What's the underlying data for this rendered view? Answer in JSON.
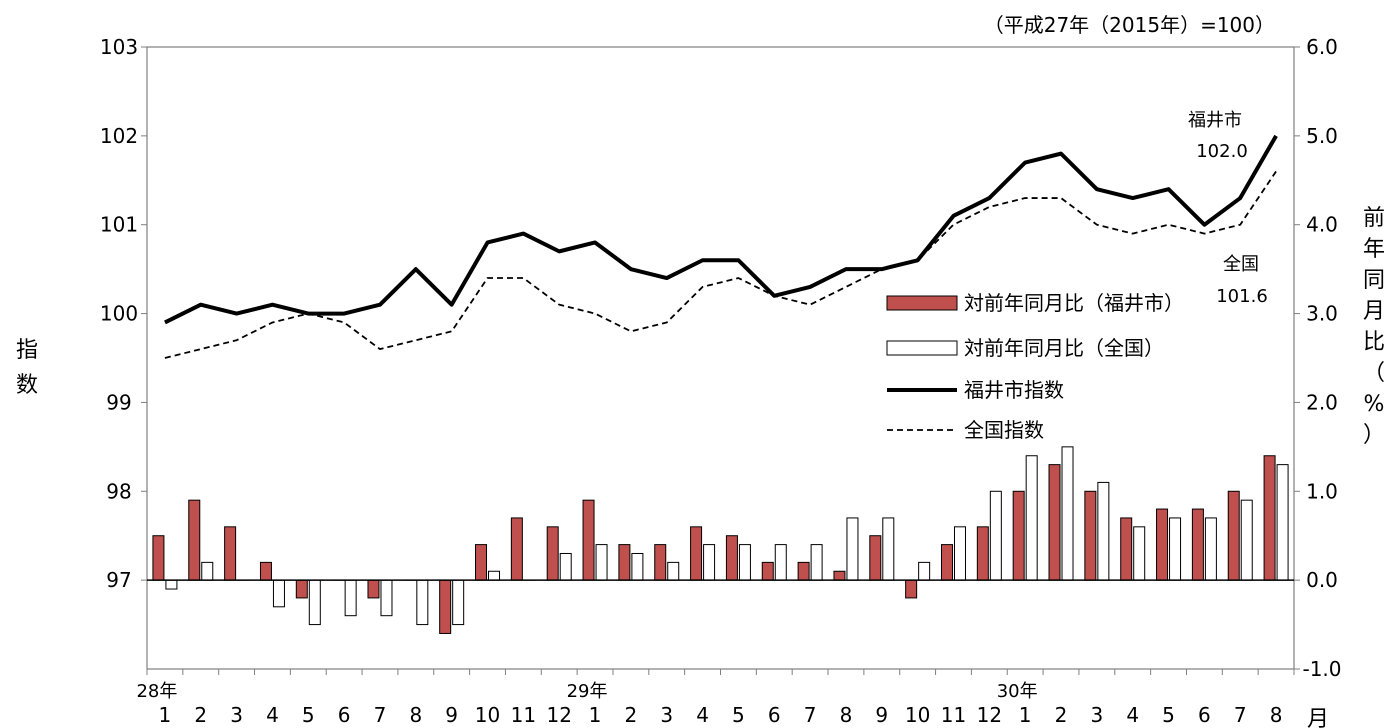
{
  "chart_data": {
    "type": "bar+line",
    "unit_note": "（平成27年（2015年）=100）",
    "y_left": {
      "label": "指数",
      "ticks": [
        "103",
        "102",
        "101",
        "100",
        "99",
        "98",
        "97"
      ],
      "ylim": [
        96,
        103
      ]
    },
    "y_right": {
      "label": [
        "前",
        "年",
        "同",
        "月",
        "比",
        "（",
        "%",
        "）"
      ],
      "ticks": [
        "6.0",
        "5.0",
        "4.0",
        "3.0",
        "2.0",
        "1.0",
        "0.0",
        "-1.0"
      ],
      "ylim": [
        -1,
        6
      ]
    },
    "x_month_labels": [
      "1",
      "2",
      "3",
      "4",
      "5",
      "6",
      "7",
      "8",
      "9",
      "10",
      "11",
      "12",
      "1",
      "2",
      "3",
      "4",
      "5",
      "6",
      "7",
      "8",
      "9",
      "10",
      "11",
      "12",
      "1",
      "2",
      "3",
      "4",
      "5",
      "6",
      "7",
      "8"
    ],
    "x_year_labels": [
      {
        "index": 0,
        "text": "28年"
      },
      {
        "index": 12,
        "text": "29年"
      },
      {
        "index": 24,
        "text": "30年"
      }
    ],
    "x_unit": "月",
    "series": [
      {
        "name": "対前年同月比（福井市）",
        "kind": "bar",
        "axis": "right",
        "color": "#c0504d",
        "values": [
          0.5,
          0.9,
          0.6,
          0.2,
          -0.2,
          0,
          -0.2,
          0,
          -0.6,
          0.4,
          0.7,
          0.6,
          0.9,
          0.4,
          0.4,
          0.6,
          0.5,
          0.2,
          0.2,
          0.1,
          0.5,
          -0.2,
          0.4,
          0.6,
          1.0,
          1.3,
          1.0,
          0.7,
          0.8,
          0.8,
          1.0,
          1.4
        ]
      },
      {
        "name": "対前年同月比（全国）",
        "kind": "bar",
        "axis": "right",
        "color": "#ffffff",
        "values": [
          -0.1,
          0.2,
          0,
          -0.3,
          -0.5,
          -0.4,
          -0.4,
          -0.5,
          -0.5,
          0.1,
          0,
          0.3,
          0.4,
          0.3,
          0.2,
          0.4,
          0.4,
          0.4,
          0.4,
          0.7,
          0.7,
          0.2,
          0.6,
          1.0,
          1.4,
          1.5,
          1.1,
          0.6,
          0.7,
          0.7,
          0.9,
          1.3
        ]
      },
      {
        "name": "福井市指数",
        "kind": "line",
        "axis": "left",
        "color": "#000000",
        "style": "solid",
        "values": [
          99.9,
          100.1,
          100.0,
          100.1,
          100.0,
          100.0,
          100.1,
          100.5,
          100.1,
          100.8,
          100.9,
          100.7,
          100.8,
          100.5,
          100.4,
          100.6,
          100.6,
          100.2,
          100.3,
          100.5,
          100.5,
          100.6,
          101.1,
          101.3,
          101.7,
          101.8,
          101.4,
          101.3,
          101.4,
          101.0,
          101.3,
          102.0
        ]
      },
      {
        "name": "全国指数",
        "kind": "line",
        "axis": "left",
        "color": "#000000",
        "style": "dashed",
        "values": [
          99.5,
          99.6,
          99.7,
          99.9,
          100.0,
          99.9,
          99.6,
          99.7,
          99.8,
          100.4,
          100.4,
          100.1,
          100.0,
          99.8,
          99.9,
          100.3,
          100.4,
          100.2,
          100.1,
          100.3,
          100.5,
          100.6,
          101.0,
          101.2,
          101.3,
          101.3,
          101.0,
          100.9,
          101.0,
          100.9,
          101.0,
          101.6
        ]
      }
    ],
    "annotations": [
      {
        "name": "福井市",
        "value": "102.0"
      },
      {
        "name": "全国",
        "value": "101.6"
      }
    ],
    "legend_position": "middle-right",
    "grid": false
  }
}
